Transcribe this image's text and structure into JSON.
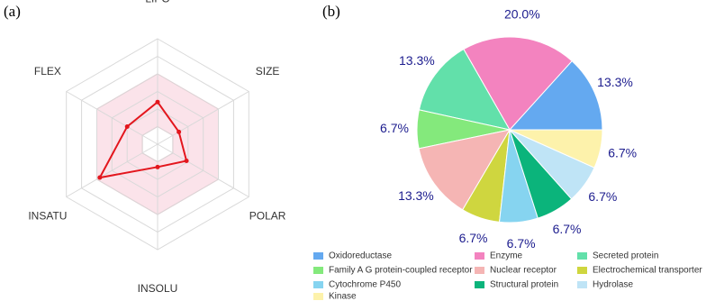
{
  "chart_data": [
    {
      "type": "radar",
      "panel_label": "(a)",
      "axes": [
        "LIPO",
        "SIZE",
        "POLAR",
        "INSOLU",
        "INSATU",
        "FLEX"
      ],
      "series": [
        {
          "color": "#e3161d",
          "values": [
            2.4,
            1.4,
            1.9,
            1.3,
            3.8,
            2.0
          ]
        }
      ],
      "rlim": [
        0,
        6
      ],
      "rticks": [
        1,
        2,
        3,
        4,
        5,
        6
      ],
      "grid": true,
      "band": {
        "lower": 1,
        "upper": 4,
        "color": "#fbe3ea",
        "edge_color": "#f0a4b4"
      }
    },
    {
      "type": "pie",
      "panel_label": "(b)",
      "categories": [
        "Oxidoreductase",
        "Enzyme",
        "Secreted protein",
        "Family A G protein-coupled receptor",
        "Nuclear receptor",
        "Electrochemical transporter",
        "Cytochrome P450",
        "Structural protein",
        "Hydrolase",
        "Kinase"
      ],
      "values": [
        13.3,
        20.0,
        13.3,
        6.7,
        13.3,
        6.7,
        6.7,
        6.7,
        6.7,
        6.7
      ],
      "value_labels": [
        "13.3%",
        "20.0%",
        "13.3%",
        "6.7%",
        "13.3%",
        "6.7%",
        "6.7%",
        "6.7%",
        "6.7%",
        "6.7%"
      ],
      "colors": [
        "#64a9f0",
        "#f383bf",
        "#62e0aa",
        "#84e97c",
        "#f5b5b4",
        "#cfd63f",
        "#86d4f0",
        "#0bb47b",
        "#bfe4f6",
        "#fdf2ab"
      ],
      "label_color": "#1c1c8e",
      "legend": "bottom"
    }
  ]
}
